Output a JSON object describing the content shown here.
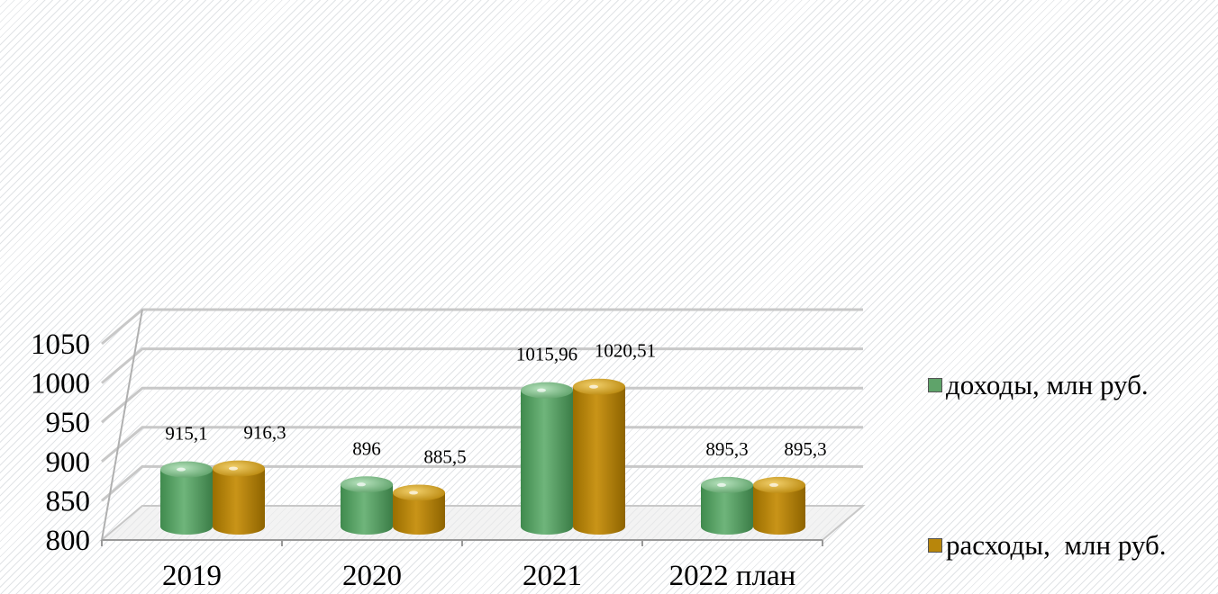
{
  "chart_data": {
    "type": "bar",
    "categories": [
      "2019",
      "2020",
      "2021",
      "2022 план"
    ],
    "series": [
      {
        "name": "доходы, млн руб.",
        "values": [
          915.1,
          896,
          1015.96,
          895.3
        ],
        "labels": [
          "915,1",
          "896",
          "1015,96",
          "895,3"
        ],
        "color": "#5fa36a"
      },
      {
        "name": "расходы,  млн руб.",
        "values": [
          916.3,
          885.5,
          1020.51,
          895.3
        ],
        "labels": [
          "916,3",
          "885,5",
          "1020,51",
          "895,3"
        ],
        "color": "#b8860b"
      }
    ],
    "yticks": [
      "800",
      "850",
      "900",
      "950",
      "1000",
      "1050"
    ],
    "ylim": [
      800,
      1050
    ],
    "grid": true,
    "legend": "right"
  }
}
